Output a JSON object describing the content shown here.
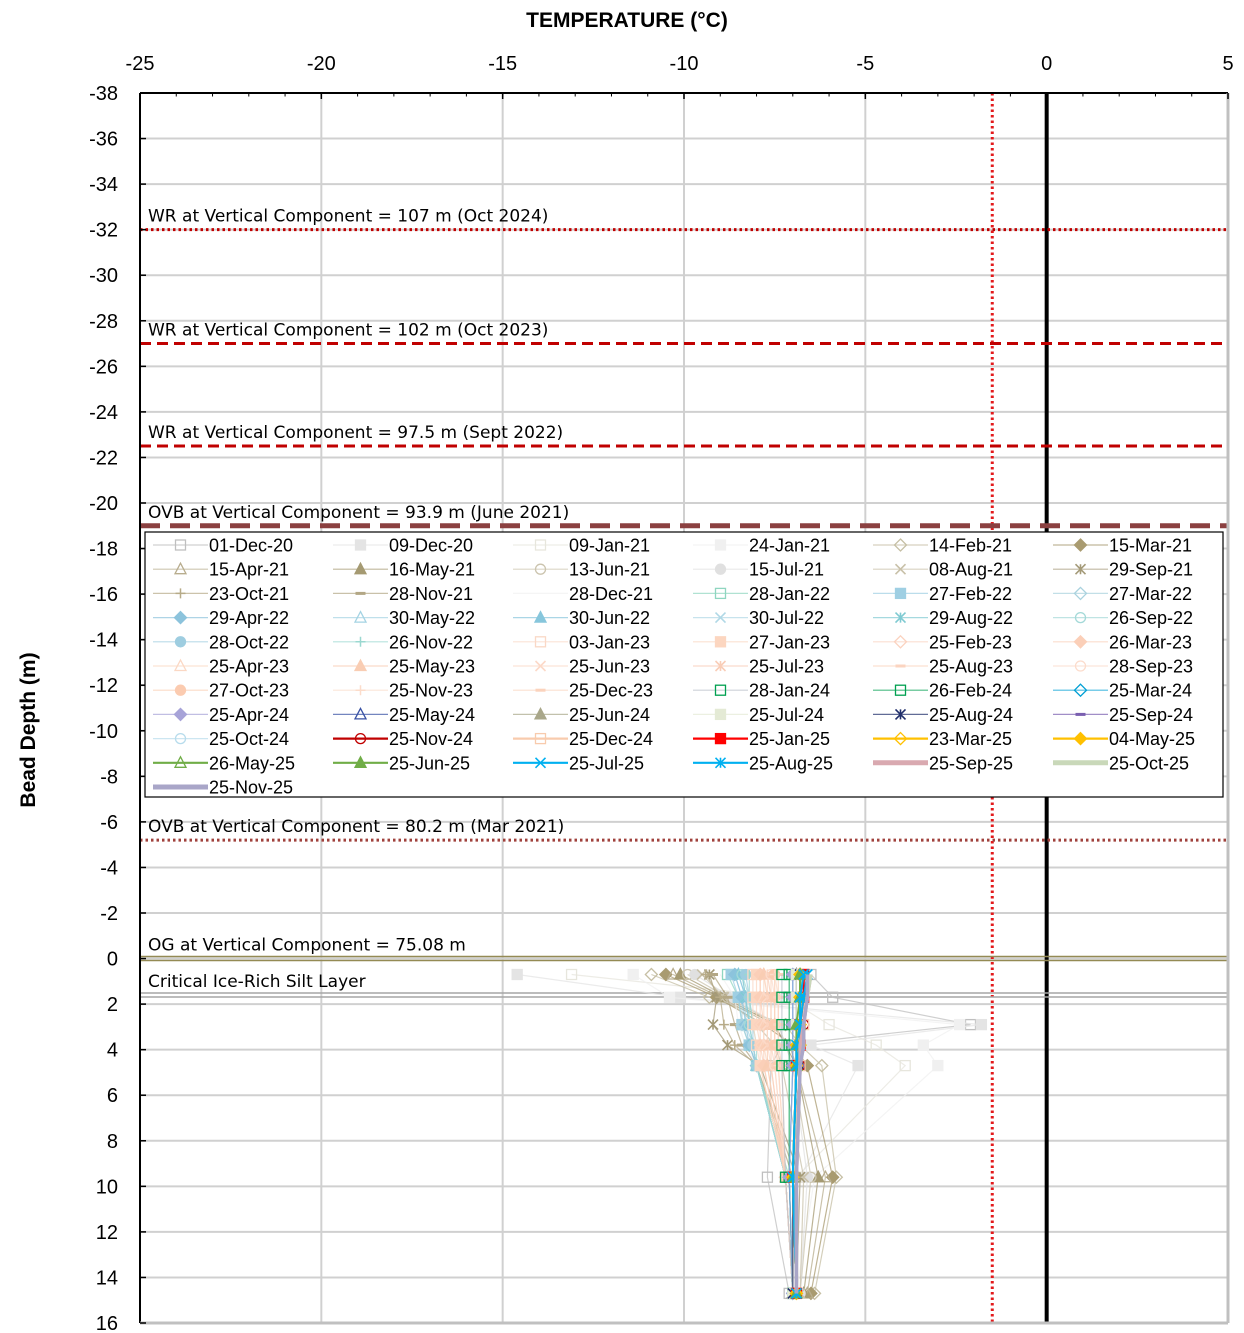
{
  "chart_data": {
    "type": "line",
    "xlabel": "TEMPERATURE (°C)",
    "ylabel": "Bead Depth (m)",
    "xlim": [
      -25,
      5
    ],
    "ylim": [
      -38,
      16
    ],
    "y_inverted": true,
    "x_ticks": [
      -25,
      -20,
      -15,
      -10,
      -5,
      0,
      5
    ],
    "y_ticks": [
      -38,
      -36,
      -34,
      -32,
      -30,
      -28,
      -26,
      -24,
      -22,
      -20,
      -18,
      -16,
      -14,
      -12,
      -10,
      -8,
      -6,
      -4,
      -2,
      0,
      2,
      4,
      6,
      8,
      10,
      12,
      14,
      16
    ],
    "grid": true,
    "legend_position": "upper-middle",
    "reference_lines": [
      {
        "orientation": "vertical",
        "x": 0,
        "color": "#000000",
        "style": "solid"
      },
      {
        "orientation": "vertical",
        "x": -1.5,
        "color": "#e31a1c",
        "style": "dotted"
      },
      {
        "orientation": "horizontal",
        "y": -32,
        "label": "WR at Vertical Component = 107 m (Oct 2024)",
        "color": "#c00000",
        "style": "dotted"
      },
      {
        "orientation": "horizontal",
        "y": -27,
        "label": "WR at Vertical Component = 102 m (Oct 2023)",
        "color": "#c00000",
        "style": "dashed"
      },
      {
        "orientation": "horizontal",
        "y": -22.5,
        "label": "WR at Vertical Component = 97.5 m (Sept 2022)",
        "color": "#c00000",
        "style": "dashed"
      },
      {
        "orientation": "horizontal",
        "y": -19,
        "label": "OVB at Vertical Component = 93.9 m (June 2021)",
        "color": "#8b4040",
        "style": "longdash"
      },
      {
        "orientation": "horizontal",
        "y": -5.2,
        "label": "OVB at Vertical Component = 80.2 m (Mar 2021)",
        "color": "#a0413c",
        "style": "dotted"
      },
      {
        "orientation": "horizontal",
        "y": 0,
        "label": "OG at Vertical Component = 75.08 m",
        "color": "#948a54",
        "style": "double"
      },
      {
        "orientation": "horizontal",
        "y": 1.6,
        "label": "Critical Ice-Rich Silt Layer",
        "color": "#a6a6a6",
        "style": "double"
      }
    ],
    "depths": [
      0.7,
      1.7,
      2.9,
      3.8,
      4.7,
      9.6,
      14.7
    ],
    "series": [
      {
        "name": "01-Dec-20",
        "color": "#bfbfbf",
        "marker": "sq-open",
        "x": [
          -6.5,
          -5.9,
          -2.1,
          -7.3,
          -7.6,
          -7.7,
          -7.1
        ]
      },
      {
        "name": "09-Dec-20",
        "color": "#e4e4e4",
        "marker": "sq",
        "x": [
          -14.6,
          -10.1,
          -1.8,
          -6.5,
          -5.2,
          -6.8,
          -6.9
        ]
      },
      {
        "name": "09-Jan-21",
        "color": "#e7e6dd",
        "marker": "sq-open",
        "x": [
          -13.1,
          -7.2,
          -6.0,
          -4.7,
          -3.9,
          -6.9,
          -7.0
        ]
      },
      {
        "name": "24-Jan-21",
        "color": "#f0f0f0",
        "marker": "sq",
        "x": [
          -11.4,
          -10.4,
          -2.4,
          -3.4,
          -3.0,
          -6.4,
          -6.9
        ]
      },
      {
        "name": "14-Feb-21",
        "color": "#c6bfa4",
        "marker": "dia-open",
        "x": [
          -10.9,
          -9.3,
          -7.2,
          -6.8,
          -6.2,
          -5.8,
          -6.4
        ]
      },
      {
        "name": "15-Mar-21",
        "color": "#a99b70",
        "marker": "dia",
        "x": [
          -10.5,
          -9.1,
          -7.8,
          -7.0,
          -6.6,
          -5.9,
          -6.5
        ]
      },
      {
        "name": "15-Apr-21",
        "color": "#b8ad8e",
        "marker": "tri-open",
        "x": [
          -10.3,
          -9.0,
          -7.6,
          -7.1,
          -6.9,
          -6.1,
          -6.6
        ]
      },
      {
        "name": "16-May-21",
        "color": "#a59a72",
        "marker": "tri",
        "x": [
          -10.1,
          -8.9,
          -7.5,
          -7.2,
          -6.9,
          -6.3,
          -6.7
        ]
      },
      {
        "name": "13-Jun-21",
        "color": "#cbc4ae",
        "marker": "circ-open",
        "x": [
          -9.9,
          -8.8,
          -7.4,
          -7.2,
          -7.0,
          -6.5,
          -6.8
        ]
      },
      {
        "name": "15-Jul-21",
        "color": "#e0e0e0",
        "marker": "circ",
        "x": [
          -9.7,
          -8.7,
          -7.4,
          -7.2,
          -7.0,
          -6.6,
          -6.8
        ]
      },
      {
        "name": "08-Aug-21",
        "color": "#c8c0a8",
        "marker": "x",
        "x": [
          -9.5,
          -8.9,
          -8.0,
          -7.5,
          -7.3,
          -6.7,
          -6.8
        ]
      },
      {
        "name": "29-Sep-21",
        "color": "#a49a78",
        "marker": "xstar",
        "x": [
          -9.3,
          -9.1,
          -9.2,
          -8.8,
          -7.9,
          -6.8,
          -6.9
        ]
      },
      {
        "name": "23-Oct-21",
        "color": "#b7ab88",
        "marker": "plus",
        "x": [
          -9.4,
          -9.0,
          -8.9,
          -8.6,
          -8.0,
          -6.9,
          -6.9
        ]
      },
      {
        "name": "28-Nov-21",
        "color": "#b3a785",
        "marker": "dash",
        "x": [
          -9.2,
          -8.8,
          -8.6,
          -8.4,
          -8.0,
          -7.0,
          -7.0
        ]
      },
      {
        "name": "28-Dec-21",
        "color": "#f2f2f2",
        "marker": "none",
        "x": [
          -9.0,
          -8.6,
          -8.5,
          -8.3,
          -8.0,
          -7.1,
          -7.0
        ]
      },
      {
        "name": "28-Jan-22",
        "color": "#8fd6c0",
        "marker": "sq-open",
        "x": [
          -8.8,
          -8.5,
          -8.4,
          -8.2,
          -8.0,
          -7.1,
          -7.0
        ]
      },
      {
        "name": "27-Feb-22",
        "color": "#9fcfe3",
        "marker": "sq",
        "x": [
          -8.7,
          -8.5,
          -8.4,
          -8.2,
          -8.0,
          -7.2,
          -7.0
        ]
      },
      {
        "name": "27-Mar-22",
        "color": "#a9d2de",
        "marker": "dia-open",
        "x": [
          -8.6,
          -8.4,
          -8.4,
          -8.2,
          -8.0,
          -7.2,
          -7.0
        ]
      },
      {
        "name": "29-Apr-22",
        "color": "#8cc3dc",
        "marker": "dia",
        "x": [
          -8.6,
          -8.4,
          -8.3,
          -8.2,
          -8.0,
          -7.2,
          -7.0
        ]
      },
      {
        "name": "30-May-22",
        "color": "#a4d3e3",
        "marker": "tri-open",
        "x": [
          -8.5,
          -8.3,
          -8.3,
          -8.1,
          -8.0,
          -7.2,
          -7.0
        ]
      },
      {
        "name": "30-Jun-22",
        "color": "#87c6dc",
        "marker": "tri",
        "x": [
          -8.5,
          -8.3,
          -8.2,
          -8.1,
          -8.0,
          -7.2,
          -7.0
        ]
      },
      {
        "name": "30-Jul-22",
        "color": "#b0d8e6",
        "marker": "x",
        "x": [
          -8.4,
          -8.3,
          -8.2,
          -8.1,
          -8.0,
          -7.2,
          -7.0
        ]
      },
      {
        "name": "29-Aug-22",
        "color": "#7fcad2",
        "marker": "xstar",
        "x": [
          -8.4,
          -8.3,
          -8.2,
          -8.1,
          -8.0,
          -7.2,
          -7.0
        ]
      },
      {
        "name": "26-Sep-22",
        "color": "#a4d9d8",
        "marker": "circ-open",
        "x": [
          -8.4,
          -8.2,
          -8.2,
          -8.1,
          -8.0,
          -7.2,
          -7.0
        ]
      },
      {
        "name": "28-Oct-22",
        "color": "#9ecde0",
        "marker": "circ",
        "x": [
          -8.3,
          -8.2,
          -8.1,
          -8.1,
          -8.0,
          -7.2,
          -7.0
        ]
      },
      {
        "name": "26-Nov-22",
        "color": "#9ad8d0",
        "marker": "plus",
        "x": [
          -8.2,
          -8.2,
          -8.1,
          -8.0,
          -8.0,
          -7.2,
          -7.0
        ]
      },
      {
        "name": "03-Jan-23",
        "color": "#fad8c6",
        "marker": "sq-open",
        "x": [
          -8.1,
          -8.1,
          -8.1,
          -8.0,
          -7.9,
          -7.2,
          -7.0
        ]
      },
      {
        "name": "27-Jan-23",
        "color": "#fcd6c0",
        "marker": "sq",
        "x": [
          -8.0,
          -8.0,
          -8.0,
          -7.9,
          -7.9,
          -7.2,
          -7.0
        ]
      },
      {
        "name": "25-Feb-23",
        "color": "#fbd2bf",
        "marker": "dia-open",
        "x": [
          -7.9,
          -7.9,
          -7.9,
          -7.9,
          -7.8,
          -7.2,
          -7.0
        ]
      },
      {
        "name": "26-Mar-23",
        "color": "#fbcfb8",
        "marker": "dia",
        "x": [
          -7.9,
          -7.9,
          -7.8,
          -7.8,
          -7.8,
          -7.2,
          -7.0
        ]
      },
      {
        "name": "25-Apr-23",
        "color": "#fbd8c4",
        "marker": "tri-open",
        "x": [
          -7.8,
          -7.8,
          -7.8,
          -7.8,
          -7.7,
          -7.2,
          -7.0
        ]
      },
      {
        "name": "25-May-23",
        "color": "#f9cdb3",
        "marker": "tri",
        "x": [
          -7.8,
          -7.7,
          -7.7,
          -7.7,
          -7.7,
          -7.2,
          -7.0
        ]
      },
      {
        "name": "25-Jun-23",
        "color": "#fcd9c8",
        "marker": "x",
        "x": [
          -7.7,
          -7.7,
          -7.7,
          -7.7,
          -7.6,
          -7.2,
          -7.0
        ]
      },
      {
        "name": "25-Jul-23",
        "color": "#f9cdb7",
        "marker": "xstar",
        "x": [
          -7.7,
          -7.6,
          -7.6,
          -7.6,
          -7.6,
          -7.2,
          -7.0
        ]
      },
      {
        "name": "25-Aug-23",
        "color": "#fbd4c0",
        "marker": "dash",
        "x": [
          -7.6,
          -7.6,
          -7.6,
          -7.6,
          -7.5,
          -7.2,
          -7.0
        ]
      },
      {
        "name": "28-Sep-23",
        "color": "#fcdccc",
        "marker": "circ-open",
        "x": [
          -7.6,
          -7.5,
          -7.5,
          -7.5,
          -7.5,
          -7.2,
          -7.0
        ]
      },
      {
        "name": "27-Oct-23",
        "color": "#fbcbb0",
        "marker": "circ",
        "x": [
          -7.5,
          -7.5,
          -7.5,
          -7.5,
          -7.4,
          -7.2,
          -7.0
        ]
      },
      {
        "name": "25-Nov-23",
        "color": "#fcdcca",
        "marker": "plus",
        "x": [
          -7.5,
          -7.4,
          -7.4,
          -7.4,
          -7.4,
          -7.2,
          -7.0
        ]
      },
      {
        "name": "25-Dec-23",
        "color": "#fbd3bd",
        "marker": "dash",
        "x": [
          -7.4,
          -7.4,
          -7.4,
          -7.4,
          -7.3,
          -7.2,
          -7.0
        ]
      },
      {
        "name": "28-Jan-24",
        "color": "#b8bfca",
        "marker": "sq-open-green",
        "x": [
          -7.3,
          -7.3,
          -7.3,
          -7.3,
          -7.3,
          -7.2,
          -7.0
        ]
      },
      {
        "name": "26-Feb-24",
        "color": "#00a050",
        "marker": "sq-open",
        "x": [
          -7.1,
          -7.1,
          -7.1,
          -7.1,
          -7.1,
          -7.1,
          -7.0
        ]
      },
      {
        "name": "25-Mar-24",
        "color": "#009fd4",
        "marker": "dia-open",
        "x": [
          -7.0,
          -7.0,
          -7.0,
          -7.0,
          -7.0,
          -7.1,
          -7.0
        ]
      },
      {
        "name": "25-Apr-24",
        "color": "#a7a3d8",
        "marker": "dia",
        "x": [
          -7.0,
          -7.0,
          -7.0,
          -7.0,
          -7.0,
          -7.1,
          -7.0
        ]
      },
      {
        "name": "25-May-24",
        "color": "#3952a4",
        "marker": "tri-open",
        "x": [
          -6.9,
          -6.9,
          -6.9,
          -6.9,
          -6.9,
          -7.0,
          -7.0
        ]
      },
      {
        "name": "25-Jun-24",
        "color": "#a9a78a",
        "marker": "tri",
        "x": [
          -6.9,
          -6.9,
          -6.9,
          -6.9,
          -6.9,
          -7.0,
          -7.0
        ]
      },
      {
        "name": "25-Jul-24",
        "color": "#e4ead5",
        "marker": "sq",
        "x": [
          -6.9,
          -6.9,
          -6.9,
          -6.9,
          -6.9,
          -7.0,
          -7.0
        ]
      },
      {
        "name": "25-Aug-24",
        "color": "#1f2d6b",
        "marker": "xstar",
        "x": [
          -6.8,
          -6.8,
          -6.8,
          -6.8,
          -6.8,
          -7.0,
          -7.0
        ]
      },
      {
        "name": "25-Sep-24",
        "color": "#7a5fb0",
        "marker": "dash",
        "x": [
          -6.8,
          -6.8,
          -6.8,
          -6.8,
          -6.8,
          -7.0,
          -6.9
        ]
      },
      {
        "name": "25-Oct-24",
        "color": "#b7dcec",
        "marker": "circ-open",
        "x": [
          -6.8,
          -6.8,
          -6.8,
          -6.8,
          -6.8,
          -7.0,
          -6.9
        ]
      },
      {
        "name": "25-Nov-24",
        "color": "#c00000",
        "marker": "circ-open",
        "x": [
          -6.7,
          -6.7,
          -6.7,
          -6.8,
          -6.8,
          -7.0,
          -6.9
        ]
      },
      {
        "name": "25-Dec-24",
        "color": "#f8cbad",
        "marker": "sq-open",
        "x": [
          -6.7,
          -6.7,
          -6.7,
          -6.8,
          -6.8,
          -7.0,
          -6.9
        ]
      },
      {
        "name": "25-Jan-25",
        "color": "#ff0000",
        "marker": "sq",
        "x": [
          -6.7,
          -6.7,
          -6.8,
          -6.8,
          -6.9,
          -7.0,
          -6.9
        ]
      },
      {
        "name": "23-Mar-25",
        "color": "#ffc000",
        "marker": "dia-open",
        "x": [
          -6.8,
          -6.8,
          -6.8,
          -6.8,
          -6.9,
          -7.0,
          -6.9
        ]
      },
      {
        "name": "04-May-25",
        "color": "#ffc000",
        "marker": "dia",
        "x": [
          -6.8,
          -6.8,
          -6.8,
          -6.9,
          -6.9,
          -7.0,
          -6.9
        ]
      },
      {
        "name": "26-May-25",
        "color": "#70ad47",
        "marker": "tri-open",
        "x": [
          -6.8,
          -6.8,
          -6.8,
          -6.9,
          -6.9,
          -7.0,
          -6.9
        ]
      },
      {
        "name": "25-Jun-25",
        "color": "#70ad47",
        "marker": "tri",
        "x": [
          -6.8,
          -6.8,
          -6.9,
          -6.9,
          -6.9,
          -7.0,
          -6.9
        ]
      },
      {
        "name": "25-Jul-25",
        "color": "#00b0f0",
        "marker": "x",
        "x": [
          -6.7,
          -6.8,
          -6.8,
          -6.9,
          -6.9,
          -7.0,
          -6.9
        ]
      },
      {
        "name": "25-Aug-25",
        "color": "#00b0f0",
        "marker": "xstar",
        "x": [
          -6.6,
          -6.7,
          -6.8,
          -6.8,
          -6.9,
          -7.0,
          -6.9
        ]
      },
      {
        "name": "25-Sep-25",
        "color": "#d9a9b0",
        "marker": "none",
        "x": [
          -6.5,
          -6.6,
          -6.7,
          -6.8,
          -6.8,
          -6.9,
          -6.9
        ]
      },
      {
        "name": "25-Oct-25",
        "color": "#c9d8b9",
        "marker": "none",
        "x": [
          -6.5,
          -6.6,
          -6.7,
          -6.7,
          -6.8,
          -6.9,
          -6.9
        ]
      },
      {
        "name": "25-Nov-25",
        "color": "#a9a6c8",
        "marker": "none",
        "x": [
          -6.6,
          -6.6,
          -6.7,
          -6.7,
          -6.8,
          -6.9,
          -6.9
        ]
      }
    ]
  }
}
